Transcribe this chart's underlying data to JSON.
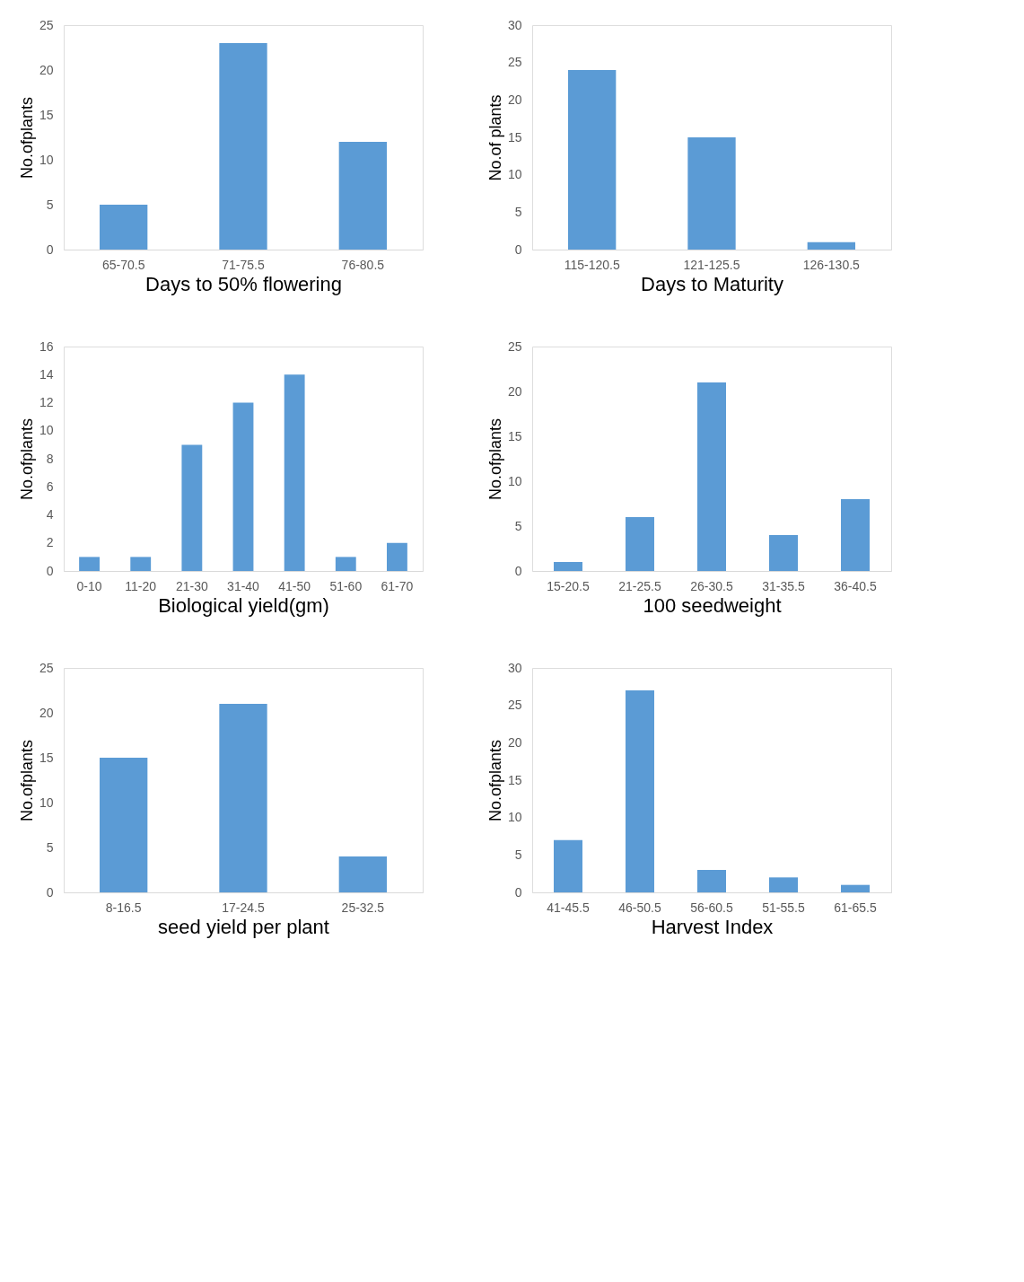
{
  "chart_data": [
    {
      "type": "bar",
      "categories": [
        "65-70.5",
        "71-75.5",
        "76-80.5"
      ],
      "values": [
        5,
        23,
        12
      ],
      "color": "#5b9bd5",
      "ylim": [
        0,
        25
      ],
      "yticks": [
        0,
        5,
        10,
        15,
        20,
        25
      ],
      "xlabel": "Days to 50% flowering",
      "ylabel": "No.ofplants"
    },
    {
      "type": "bar",
      "categories": [
        "115-120.5",
        "121-125.5",
        "126-130.5"
      ],
      "values": [
        24,
        15,
        1
      ],
      "color": "#5b9bd5",
      "ylim": [
        0,
        30
      ],
      "yticks": [
        0,
        5,
        10,
        15,
        20,
        25,
        30
      ],
      "xlabel": "Days to Maturity",
      "ylabel": "No.of plants"
    },
    {
      "type": "bar",
      "categories": [
        "0-10",
        "11-20",
        "21-30",
        "31-40",
        "41-50",
        "51-60",
        "61-70"
      ],
      "values": [
        1,
        1,
        9,
        12,
        14,
        1,
        2
      ],
      "color": "#5b9bd5",
      "ylim": [
        0,
        16
      ],
      "yticks": [
        0,
        2,
        4,
        6,
        8,
        10,
        12,
        14,
        16
      ],
      "xlabel": "Biological yield(gm)",
      "ylabel": "No.ofplants"
    },
    {
      "type": "bar",
      "categories": [
        "15-20.5",
        "21-25.5",
        "26-30.5",
        "31-35.5",
        "36-40.5"
      ],
      "values": [
        1,
        6,
        21,
        4,
        8
      ],
      "color": "#5b9bd5",
      "ylim": [
        0,
        25
      ],
      "yticks": [
        0,
        5,
        10,
        15,
        20,
        25
      ],
      "xlabel": "100 seedweight",
      "ylabel": "No.ofplants"
    },
    {
      "type": "bar",
      "categories": [
        "8-16.5",
        "17-24.5",
        "25-32.5"
      ],
      "values": [
        15,
        21,
        4
      ],
      "color": "#5b9bd5",
      "ylim": [
        0,
        25
      ],
      "yticks": [
        0,
        5,
        10,
        15,
        20,
        25
      ],
      "xlabel": "seed yield per plant",
      "ylabel": "No.ofplants"
    },
    {
      "type": "bar",
      "categories": [
        "41-45.5",
        "46-50.5",
        "56-60.5",
        "51-55.5",
        "61-65.5"
      ],
      "values": [
        7,
        27,
        3,
        2,
        1
      ],
      "color": "#5b9bd5",
      "ylim": [
        0,
        30
      ],
      "yticks": [
        0,
        5,
        10,
        15,
        20,
        25,
        30
      ],
      "xlabel": "Harvest Index",
      "ylabel": "No.ofplants"
    }
  ]
}
